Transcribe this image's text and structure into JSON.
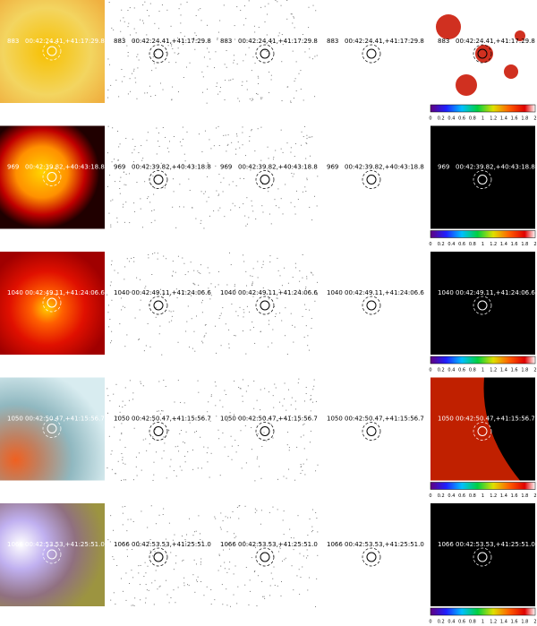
{
  "rows": [
    {
      "id": "883",
      "coord": "00:42:24.41,+41:17:29.8"
    },
    {
      "id": "969",
      "coord": "00:42:39.82,+40:43:18.8"
    },
    {
      "id": "1040",
      "coord": "00:42:49.11,+41:24:06.6"
    },
    {
      "id": "1050",
      "coord": "00:42:50.47,+41:15:56.7"
    },
    {
      "id": "1066",
      "coord": "00:42:53.53,+41:25:51.0"
    }
  ],
  "colorbar_ticks": [
    0,
    0.2,
    0.4,
    0.6,
    0.8,
    1,
    1.2,
    1.4,
    1.6,
    1.8,
    2
  ]
}
